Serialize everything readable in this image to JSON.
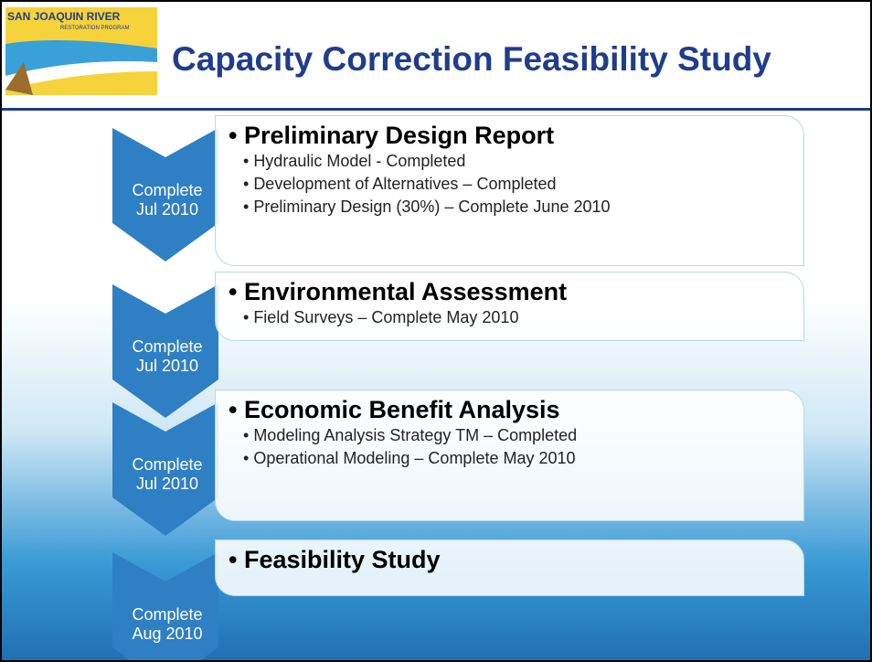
{
  "header": {
    "logo_line1": "SAN JOAQUIN RIVER",
    "logo_line2": "RESTORATION PROGRAM",
    "title": "Capacity Correction Feasibility Study"
  },
  "steps": [
    {
      "status": "Complete",
      "date": "Jul 2010",
      "heading": "Preliminary Design Report",
      "items": [
        "Hydraulic Model - Completed",
        "Development of Alternatives – Completed",
        "Preliminary Design (30%) – Complete June 2010"
      ]
    },
    {
      "status": "Complete",
      "date": "Jul 2010",
      "heading": "Environmental Assessment",
      "items": [
        "Field Surveys – Complete May 2010"
      ]
    },
    {
      "status": "Complete",
      "date": "Jul 2010",
      "heading": "Economic Benefit Analysis",
      "items": [
        "Modeling Analysis Strategy TM – Completed",
        "Operational Modeling – Complete May 2010"
      ]
    },
    {
      "status": "Complete",
      "date": "Aug 2010",
      "heading": "Feasibility Study",
      "items": []
    }
  ]
}
